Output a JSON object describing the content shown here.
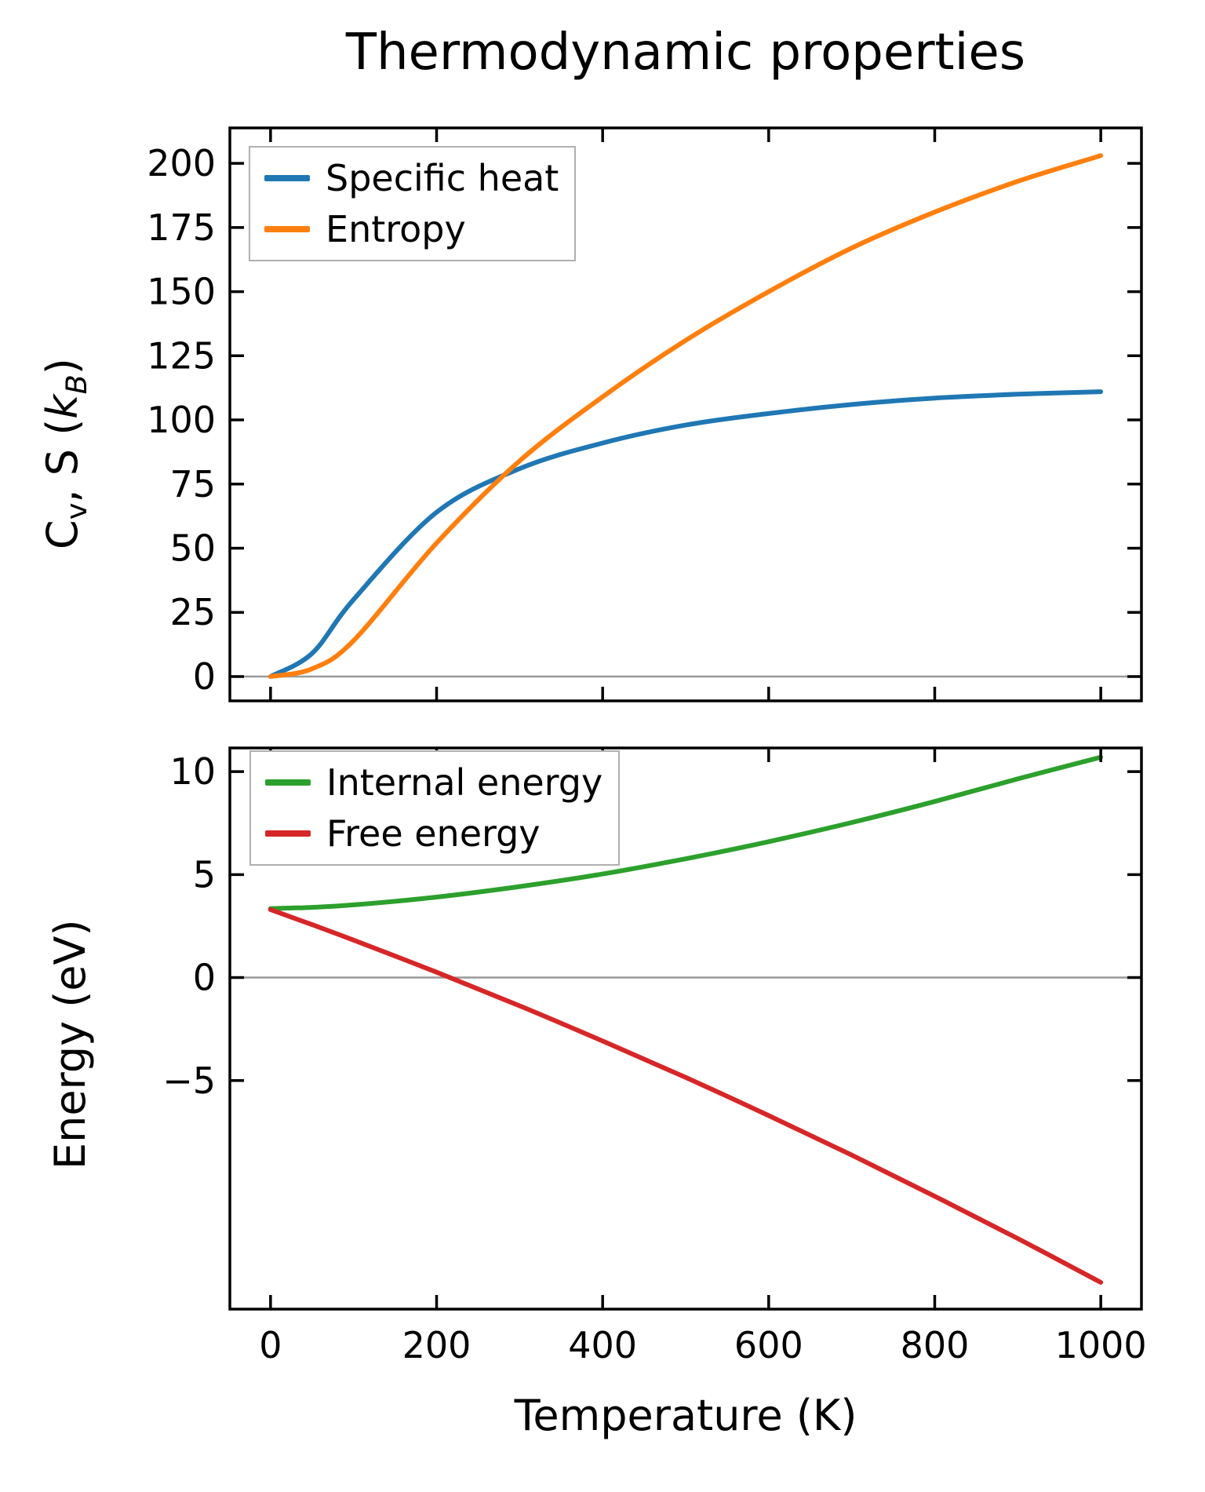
{
  "title": "Thermodynamic properties",
  "x_axis": {
    "label": "Temperature (K)",
    "tick_labels": [
      "0",
      "200",
      "400",
      "600",
      "800",
      "1000"
    ],
    "tick_values": [
      0,
      200,
      400,
      600,
      800,
      1000
    ],
    "lim": [
      -49,
      1049
    ]
  },
  "top_plot": {
    "ylabel_parts": {
      "p1": "C",
      "sub1": "v",
      "p2": ", S (",
      "k": "k",
      "sub2": "B",
      "p3": ")"
    },
    "tick_labels": [
      "0",
      "25",
      "50",
      "75",
      "100",
      "125",
      "150",
      "175",
      "200"
    ],
    "tick_values": [
      0,
      25,
      50,
      75,
      100,
      125,
      150,
      175,
      200
    ],
    "ylim": [
      -9.5,
      213.8
    ],
    "zero_line": true
  },
  "bottom_plot": {
    "ylabel": "Energy (eV)",
    "tick_labels": [
      "−5",
      "0",
      "5",
      "10"
    ],
    "tick_values": [
      -5,
      0,
      5,
      10
    ],
    "ylim": [
      -16.1,
      11.15
    ],
    "zero_line": true
  },
  "colors": {
    "specific_heat": "#1f77b4",
    "entropy": "#ff7f0e",
    "internal_energy": "#2ca02c",
    "free_energy": "#d62728",
    "frame": "#000000",
    "zero_line": "#999999",
    "legend_border": "#b0b0b0"
  },
  "chart_data": [
    {
      "type": "line",
      "panel": "top",
      "title": "Thermodynamic properties",
      "xlabel": "Temperature (K)",
      "ylabel": "Cv, S (kB)",
      "x": [
        0,
        50,
        100,
        200,
        300,
        400,
        500,
        600,
        700,
        800,
        900,
        1000
      ],
      "series": [
        {
          "name": "Specific heat",
          "color": "#1f77b4",
          "values": [
            0,
            9,
            30,
            64,
            81,
            91,
            98,
            102.5,
            106,
            108.5,
            110,
            111
          ]
        },
        {
          "name": "Entropy",
          "color": "#ff7f0e",
          "values": [
            0,
            3,
            14,
            52,
            84,
            109,
            131,
            150,
            167,
            181,
            193,
            203
          ]
        }
      ],
      "xlim": [
        -49,
        1049
      ],
      "ylim": [
        -9.5,
        213.8
      ],
      "yticks": [
        0,
        25,
        50,
        75,
        100,
        125,
        150,
        175,
        200
      ],
      "grid": false,
      "legend_position": "upper left"
    },
    {
      "type": "line",
      "panel": "bottom",
      "xlabel": "Temperature (K)",
      "ylabel": "Energy (eV)",
      "x": [
        0,
        50,
        100,
        200,
        300,
        400,
        500,
        600,
        700,
        800,
        900,
        1000
      ],
      "series": [
        {
          "name": "Internal energy",
          "color": "#2ca02c",
          "values": [
            3.35,
            3.41,
            3.53,
            3.91,
            4.42,
            5.03,
            5.77,
            6.6,
            7.53,
            8.55,
            9.65,
            10.7
          ]
        },
        {
          "name": "Free energy",
          "color": "#d62728",
          "values": [
            3.3,
            2.57,
            1.82,
            0.26,
            -1.37,
            -3.08,
            -4.85,
            -6.7,
            -8.62,
            -10.62,
            -12.67,
            -14.8
          ]
        }
      ],
      "xlim": [
        -49,
        1049
      ],
      "ylim": [
        -16.1,
        11.15
      ],
      "yticks": [
        -5,
        0,
        5,
        10
      ],
      "grid": false,
      "legend_position": "upper left"
    }
  ]
}
